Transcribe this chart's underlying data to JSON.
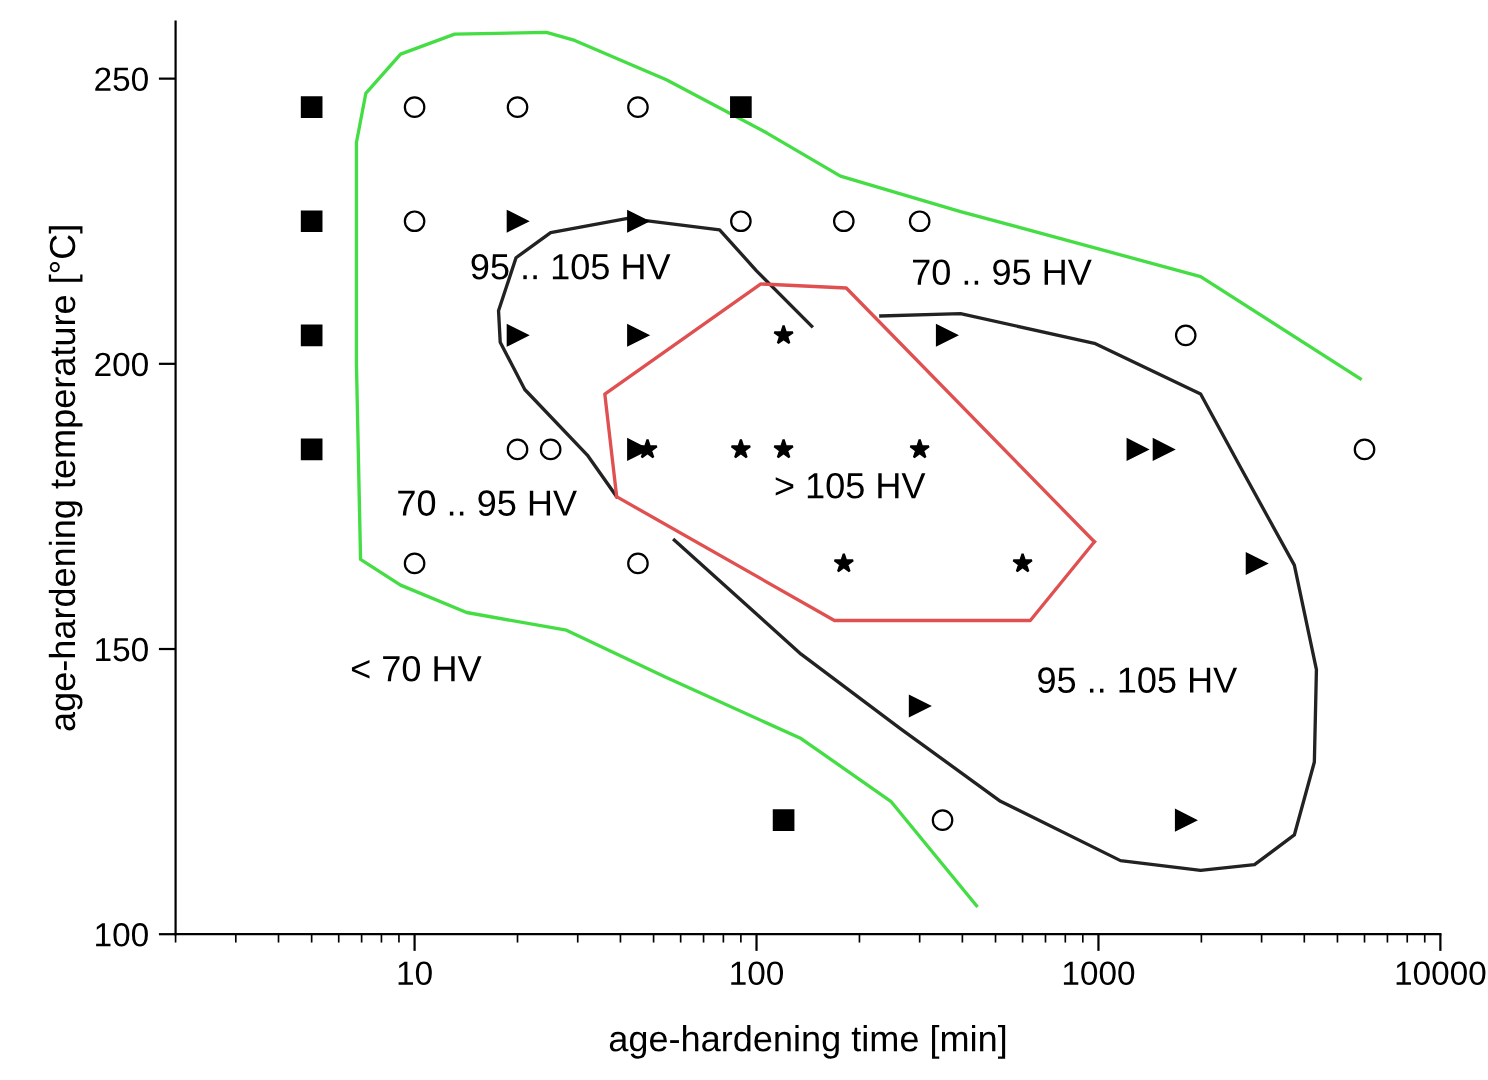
{
  "chart_data": {
    "type": "scatter",
    "xlabel": "age-hardening time [min]",
    "ylabel": "age-hardening temperature [°C]",
    "log": "x",
    "xlim": [
      2,
      10000
    ],
    "xticks": [
      10,
      100,
      1000,
      10000
    ],
    "ylim": [
      100,
      260
    ],
    "yticks": [
      100,
      150,
      200,
      250
    ],
    "grid": false,
    "legend": false,
    "series": [
      {
        "marker": "square",
        "color": "#000000",
        "x": [
          5,
          5,
          5,
          5,
          90,
          120
        ],
        "values": [
          245,
          225,
          205,
          185,
          245,
          120
        ]
      },
      {
        "marker": "circle",
        "color": "#ffffff",
        "x": [
          10,
          20,
          45,
          10,
          90,
          180,
          300,
          1800,
          20,
          25,
          6000,
          10,
          45,
          350
        ],
        "values": [
          245,
          245,
          245,
          225,
          225,
          225,
          225,
          205,
          185,
          185,
          185,
          165,
          165,
          120
        ]
      },
      {
        "marker": "triangle",
        "color": "#000000",
        "x": [
          20,
          45,
          20,
          45,
          360,
          45,
          1300,
          1550,
          2900,
          300,
          1800
        ],
        "values": [
          225,
          225,
          205,
          205,
          205,
          185,
          185,
          185,
          165,
          140,
          120
        ]
      },
      {
        "marker": "star",
        "color": "#000000",
        "x": [
          120,
          48,
          90,
          120,
          300,
          180,
          600
        ],
        "values": [
          205,
          185,
          185,
          185,
          185,
          165,
          165
        ]
      },
      {
        "type": "line",
        "color": "#44dd44",
        "x": [
          440,
          247,
          135,
          54.5,
          27.8,
          14.2,
          9.1,
          6.95,
          6.76,
          6.76,
          7.2,
          9.1,
          13.1,
          24.3,
          29.4,
          54.5,
          107,
          176,
          395,
          1990,
          5830
        ],
        "values": [
          105,
          123.3,
          134.3,
          145,
          153.3,
          156.4,
          161.2,
          165.7,
          200,
          238.8,
          247.4,
          254.3,
          257.8,
          258.1,
          256.7,
          249.8,
          240.5,
          232.9,
          226.7,
          215.3,
          197.4
        ]
      },
      {
        "type": "line",
        "color": "#222222",
        "x": [
          39,
          32,
          21,
          17.8,
          17.6,
          19.8,
          25,
          42,
          78,
          100,
          145
        ],
        "values": [
          176.7,
          184,
          195.5,
          203.8,
          209.3,
          218.6,
          223,
          225.5,
          223.5,
          216.3,
          206.6
        ]
      },
      {
        "type": "line",
        "color": "#222222",
        "x": [
          231,
          395,
          973,
          1990,
          2600,
          3740,
          4340,
          4280,
          3740,
          2860,
          1990,
          1160,
          517,
          264,
          135,
          57.5
        ],
        "values": [
          208.4,
          208.8,
          203.6,
          194.7,
          181.9,
          164.7,
          146.4,
          130.2,
          117.4,
          112.2,
          111.2,
          112.9,
          123.3,
          136.0,
          149.1,
          169.1
        ]
      },
      {
        "type": "line",
        "color": "#e05050",
        "x": [
          39,
          36,
          103,
          183,
          973
        ],
        "values": [
          176.7,
          194.7,
          214.0,
          213.3,
          168.8
        ]
      },
      {
        "type": "line",
        "color": "#e05050",
        "x": [
          973,
          632,
          169,
          39
        ],
        "values": [
          168.8,
          155.0,
          155.0,
          176.7
        ]
      }
    ],
    "annotations": [
      "95 .. 105 HV",
      "70 .. 95 HV",
      "70 .. 95 HV",
      "> 105 HV",
      "< 70 HV",
      "95 .. 105 HV"
    ]
  }
}
